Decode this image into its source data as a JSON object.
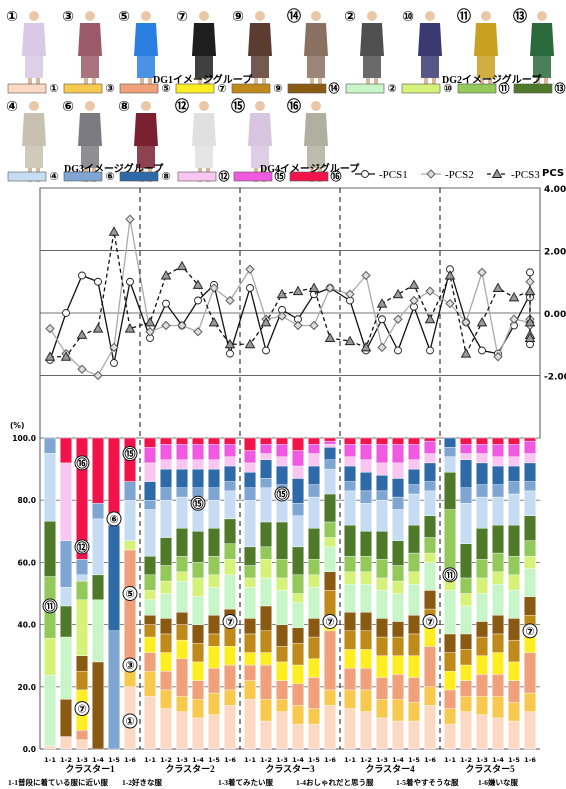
{
  "chart_data": {
    "type": "bar",
    "legend_groups": [
      {
        "name": "DG1イメージグループ",
        "items": [
          {
            "label": "①",
            "color": "#fbd9c3"
          },
          {
            "label": "③",
            "color": "#f7c94e"
          },
          {
            "label": "⑤",
            "color": "#f0a07a"
          },
          {
            "label": "⑦",
            "color": "#ffee22"
          },
          {
            "label": "⑨",
            "color": "#c08a1a"
          },
          {
            "label": "⑭",
            "color": "#8a5a12"
          }
        ]
      },
      {
        "name": "DG2イメージグループ",
        "items": [
          {
            "label": "②",
            "color": "#c8f5c8"
          },
          {
            "label": "⑩",
            "color": "#d6f27a"
          },
          {
            "label": "⑪",
            "color": "#93c85a"
          },
          {
            "label": "⑬",
            "color": "#4f7a2a"
          }
        ]
      },
      {
        "name": "DG3イメージグループ",
        "items": [
          {
            "label": "④",
            "color": "#c6dcf2"
          },
          {
            "label": "⑥",
            "color": "#7fa6d2"
          },
          {
            "label": "⑧",
            "color": "#2f6aa8"
          }
        ]
      },
      {
        "name": "DG4イメージグループ",
        "items": [
          {
            "label": "⑫",
            "color": "#f9c6f2"
          },
          {
            "label": "⑮",
            "color": "#f05ae0"
          },
          {
            "label": "⑯",
            "color": "#f2134a"
          }
        ]
      }
    ],
    "photo_labels": [
      "①",
      "③",
      "⑤",
      "⑦",
      "⑨",
      "⑭",
      "②",
      "⑩",
      "⑪",
      "⑬",
      "④",
      "⑥",
      "⑧",
      "⑫",
      "⑮",
      "⑯"
    ],
    "line_chart": {
      "ylabel": "PCS",
      "ylim": [
        -4,
        4
      ],
      "yticks": [
        "4.00",
        "2.00",
        "0.00",
        "-2.00"
      ],
      "series": [
        {
          "name": "PCS1",
          "values": [
            -1.5,
            0.0,
            1.2,
            1.0,
            -1.6,
            1.0,
            -0.8,
            0.3,
            -0.4,
            0.4,
            0.9,
            -1.3,
            0.8,
            -1.2,
            0.1,
            -0.2,
            0.6,
            0.8,
            0.4,
            -1.2,
            -0.2,
            -1.2,
            0.2,
            -1.2,
            1.4,
            -0.3,
            -1.2,
            -1.3,
            -0.4,
            0.6,
            0.5,
            -1.0,
            1.3
          ]
        },
        {
          "name": "PCS2",
          "values": [
            -0.5,
            -1.3,
            -1.8,
            -2.0,
            -1.1,
            3.0,
            -0.6,
            -0.4,
            -0.4,
            -0.6,
            0.8,
            0.4,
            1.4,
            -0.2,
            -0.1,
            -0.4,
            -0.4,
            0.8,
            0.6,
            1.2,
            -1.1,
            -0.2,
            0.4,
            0.7,
            0.3,
            -0.3,
            1.3,
            -1.4,
            -0.2,
            -0.3,
            -0.2,
            -0.4,
            1.0
          ]
        },
        {
          "name": "PCS3",
          "values": [
            -1.4,
            -1.4,
            -0.7,
            -0.5,
            2.6,
            -0.5,
            -0.3,
            1.2,
            1.5,
            0.9,
            -0.3,
            -1.0,
            -1.0,
            -0.3,
            0.6,
            0.7,
            0.8,
            -0.8,
            -0.9,
            -1.1,
            0.3,
            0.6,
            0.9,
            -0.2,
            1.2,
            -1.3,
            -0.3,
            0.8,
            0.5,
            0.7,
            -0.3,
            -0.7,
            -0.8
          ]
        }
      ]
    },
    "bar_chart": {
      "ylabel": "(%)",
      "ylim": [
        0,
        100
      ],
      "yticks": [
        "100.0",
        "80.0",
        "60.0",
        "40.0",
        "20.0",
        "0.0"
      ],
      "stack_order": [
        "①",
        "③",
        "⑤",
        "⑦",
        "⑨",
        "⑭",
        "②",
        "⑩",
        "⑪",
        "⑬",
        "④",
        "⑥",
        "⑧",
        "⑫",
        "⑮",
        "⑯"
      ],
      "clusters": [
        {
          "name": "クラスター1",
          "bars": [
            [
              1,
              0,
              0,
              0,
              0,
              0,
              23,
              12,
              20,
              18,
              22,
              5,
              0,
              0,
              0,
              0
            ],
            [
              4,
              0,
              0,
              0,
              0,
              12,
              20,
              0,
              0,
              10,
              6,
              15,
              0,
              25,
              0,
              8
            ],
            [
              3,
              0,
              3,
              13,
              6,
              5,
              0,
              18,
              6,
              0,
              2,
              5,
              0,
              0,
              0,
              39
            ],
            [
              0,
              0,
              0,
              0,
              0,
              28,
              20,
              0,
              0,
              8,
              18,
              5,
              0,
              0,
              0,
              21
            ],
            [
              0,
              0,
              0,
              0,
              0,
              0,
              0,
              0,
              0,
              0,
              0,
              38,
              34,
              3,
              0,
              25
            ],
            [
              20,
              8,
              36,
              0,
              0,
              0,
              0,
              3,
              0,
              0,
              13,
              6,
              0,
              0,
              0,
              14
            ]
          ]
        },
        {
          "name": "クラスター2",
          "bars": [
            [
              17,
              8,
              6,
              5,
              4,
              3,
              5,
              3,
              5,
              6,
              15,
              3,
              6,
              6,
              5,
              3
            ],
            [
              13,
              6,
              6,
              6,
              6,
              5,
              8,
              4,
              5,
              9,
              12,
              4,
              6,
              3,
              5,
              2
            ],
            [
              12,
              5,
              12,
              6,
              5,
              4,
              10,
              3,
              5,
              9,
              10,
              3,
              6,
              3,
              5,
              2
            ],
            [
              10,
              6,
              6,
              6,
              6,
              6,
              9,
              6,
              5,
              10,
              11,
              3,
              6,
              3,
              5,
              2
            ],
            [
              11,
              7,
              8,
              7,
              4,
              6,
              9,
              4,
              6,
              9,
              9,
              4,
              6,
              3,
              5,
              2
            ],
            [
              14,
              5,
              8,
              6,
              6,
              6,
              11,
              5,
              5,
              8,
              9,
              3,
              5,
              3,
              4,
              2
            ]
          ]
        },
        {
          "name": "クラスター3",
          "bars": [
            [
              16,
              6,
              5,
              4,
              6,
              5,
              10,
              3,
              4,
              6,
              15,
              4,
              5,
              3,
              4,
              4
            ],
            [
              9,
              7,
              11,
              4,
              7,
              8,
              9,
              6,
              4,
              8,
              11,
              3,
              6,
              2,
              3,
              2
            ],
            [
              12,
              4,
              6,
              6,
              5,
              7,
              11,
              4,
              6,
              12,
              8,
              4,
              6,
              3,
              4,
              2
            ],
            [
              8,
              6,
              7,
              6,
              7,
              5,
              8,
              3,
              6,
              9,
              10,
              4,
              8,
              4,
              5,
              4
            ],
            [
              8,
              5,
              10,
              6,
              7,
              6,
              10,
              4,
              5,
              10,
              10,
              4,
              6,
              4,
              3,
              2
            ],
            [
              14,
              5,
              19,
              4,
              9,
              6,
              8,
              3,
              5,
              9,
              8,
              3,
              4,
              1,
              1,
              1
            ]
          ]
        },
        {
          "name": "クラスター4",
          "bars": [
            [
              13,
              6,
              7,
              6,
              6,
              6,
              9,
              4,
              5,
              10,
              11,
              3,
              5,
              3,
              4,
              2
            ],
            [
              12,
              7,
              7,
              6,
              6,
              6,
              9,
              4,
              5,
              8,
              9,
              4,
              6,
              4,
              5,
              2
            ],
            [
              10,
              6,
              7,
              7,
              6,
              6,
              9,
              4,
              6,
              9,
              10,
              3,
              5,
              4,
              6,
              2
            ],
            [
              9,
              7,
              8,
              6,
              6,
              5,
              9,
              4,
              5,
              8,
              10,
              4,
              6,
              5,
              6,
              2
            ],
            [
              9,
              6,
              8,
              7,
              7,
              6,
              10,
              4,
              6,
              9,
              10,
              3,
              5,
              3,
              5,
              2
            ],
            [
              14,
              6,
              13,
              6,
              6,
              6,
              9,
              3,
              5,
              7,
              8,
              3,
              6,
              3,
              4,
              1
            ]
          ]
        },
        {
          "name": "クラスター5",
          "bars": [
            [
              8,
              5,
              6,
              6,
              6,
              6,
              14,
              6,
              20,
              12,
              5,
              3,
              3,
              0,
              0,
              0
            ],
            [
              12,
              5,
              5,
              5,
              5,
              5,
              9,
              4,
              5,
              11,
              13,
              5,
              9,
              2,
              3,
              2
            ],
            [
              11,
              6,
              7,
              6,
              6,
              5,
              9,
              5,
              6,
              10,
              10,
              4,
              7,
              3,
              3,
              2
            ],
            [
              10,
              7,
              7,
              7,
              6,
              6,
              10,
              4,
              6,
              9,
              9,
              4,
              6,
              3,
              4,
              2
            ],
            [
              9,
              6,
              7,
              6,
              7,
              7,
              9,
              5,
              6,
              10,
              10,
              4,
              5,
              3,
              4,
              2
            ],
            [
              12,
              6,
              13,
              6,
              6,
              6,
              9,
              4,
              5,
              8,
              8,
              3,
              6,
              3,
              4,
              1
            ]
          ]
        }
      ],
      "bar_labels": [
        "1-1",
        "1-2",
        "1-3",
        "1-4",
        "1-5",
        "1-6"
      ],
      "category_legend": [
        "1-1普段に着ている服に近い服",
        "1-2好きな服",
        "1-3着てみたい服",
        "1-4おしゃれだと思う服",
        "1-5着やすそうな服",
        "1-6嫌いな服"
      ],
      "annotations": [
        {
          "label": "⑯",
          "cluster": 0,
          "bar": 2,
          "y": 92
        },
        {
          "label": "⑮",
          "cluster": 0,
          "bar": 5,
          "y": 95
        },
        {
          "label": "⑥",
          "cluster": 0,
          "bar": 4,
          "y": 74
        },
        {
          "label": "⑫",
          "cluster": 0,
          "bar": 2,
          "y": 65
        },
        {
          "label": "⑪",
          "cluster": 0,
          "bar": 0,
          "y": 46
        },
        {
          "label": "⑤",
          "cluster": 0,
          "bar": 5,
          "y": 50
        },
        {
          "label": "③",
          "cluster": 0,
          "bar": 5,
          "y": 27
        },
        {
          "label": "⑦",
          "cluster": 0,
          "bar": 2,
          "y": 13
        },
        {
          "label": "①",
          "cluster": 0,
          "bar": 5,
          "y": 9
        },
        {
          "label": "⑮",
          "cluster": 1,
          "bar": 3,
          "y": 79
        },
        {
          "label": "⑦",
          "cluster": 1,
          "bar": 5,
          "y": 41
        },
        {
          "label": "⑮",
          "cluster": 2,
          "bar": 2,
          "y": 82
        },
        {
          "label": "⑦",
          "cluster": 2,
          "bar": 5,
          "y": 41
        },
        {
          "label": "⑦",
          "cluster": 3,
          "bar": 5,
          "y": 41
        },
        {
          "label": "⑪",
          "cluster": 4,
          "bar": 0,
          "y": 56
        },
        {
          "label": "⑦",
          "cluster": 4,
          "bar": 5,
          "y": 38
        }
      ]
    }
  }
}
